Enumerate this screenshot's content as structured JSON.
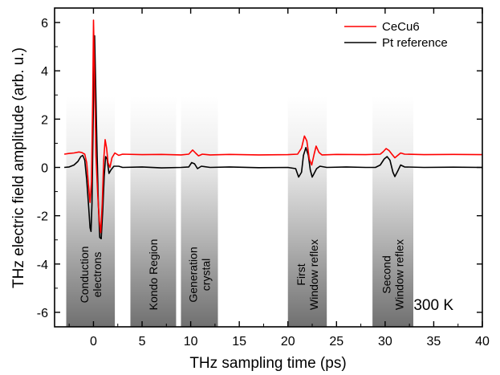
{
  "chart_data": {
    "type": "line",
    "title": "",
    "xlabel": "THz sampling time (ps)",
    "ylabel": "THz electric field amplitude (arb. u.)",
    "xlim": [
      -4,
      40
    ],
    "ylim": [
      -6.6,
      6.6
    ],
    "xticks": [
      0,
      5,
      10,
      15,
      20,
      25,
      30,
      35,
      40
    ],
    "yticks": [
      -6,
      -4,
      -2,
      0,
      2,
      4,
      6
    ],
    "legend": {
      "placement": "top-right"
    },
    "annotation": "300 K",
    "regions": [
      {
        "x0": -2.8,
        "x1": 2.2,
        "lines": [
          "Conduction",
          "electrons"
        ]
      },
      {
        "x0": 3.8,
        "x1": 8.5,
        "lines": [
          "Kondo Region"
        ]
      },
      {
        "x0": 9.0,
        "x1": 12.8,
        "lines": [
          "Generation",
          "crystal"
        ]
      },
      {
        "x0": 20.0,
        "x1": 24.0,
        "lines": [
          "First",
          "Window reflex"
        ]
      },
      {
        "x0": 28.7,
        "x1": 32.9,
        "lines": [
          "Second",
          "Window reflex"
        ]
      }
    ],
    "series": [
      {
        "name": "CeCu6",
        "color": "#ff0000",
        "points": [
          [
            -3,
            0.55
          ],
          [
            -2.5,
            0.58
          ],
          [
            -2,
            0.6
          ],
          [
            -1.5,
            0.64
          ],
          [
            -1.2,
            0.62
          ],
          [
            -0.9,
            0.55
          ],
          [
            -0.7,
            0.2
          ],
          [
            -0.5,
            -0.8
          ],
          [
            -0.35,
            -1.45
          ],
          [
            -0.2,
            -0.6
          ],
          [
            -0.08,
            2.8
          ],
          [
            0,
            6.1
          ],
          [
            0.1,
            4.0
          ],
          [
            0.25,
            0.5
          ],
          [
            0.45,
            -1.2
          ],
          [
            0.6,
            -2.2
          ],
          [
            0.75,
            -2.7
          ],
          [
            0.9,
            -1.5
          ],
          [
            1.05,
            0.3
          ],
          [
            1.2,
            1.15
          ],
          [
            1.35,
            0.8
          ],
          [
            1.5,
            0.2
          ],
          [
            1.7,
            0.0
          ],
          [
            1.9,
            0.4
          ],
          [
            2.2,
            0.6
          ],
          [
            2.6,
            0.5
          ],
          [
            3,
            0.55
          ],
          [
            5,
            0.53
          ],
          [
            7,
            0.54
          ],
          [
            9,
            0.52
          ],
          [
            9.8,
            0.55
          ],
          [
            10.2,
            0.72
          ],
          [
            10.5,
            0.6
          ],
          [
            10.8,
            0.48
          ],
          [
            11.2,
            0.55
          ],
          [
            12,
            0.52
          ],
          [
            14,
            0.54
          ],
          [
            17,
            0.52
          ],
          [
            20,
            0.53
          ],
          [
            21,
            0.55
          ],
          [
            21.4,
            0.8
          ],
          [
            21.7,
            1.3
          ],
          [
            21.95,
            1.1
          ],
          [
            22.2,
            0.35
          ],
          [
            22.45,
            0.1
          ],
          [
            22.7,
            0.55
          ],
          [
            22.9,
            0.88
          ],
          [
            23.2,
            0.62
          ],
          [
            23.5,
            0.52
          ],
          [
            25,
            0.54
          ],
          [
            28,
            0.53
          ],
          [
            29.5,
            0.55
          ],
          [
            29.8,
            0.65
          ],
          [
            30.1,
            0.78
          ],
          [
            30.4,
            0.7
          ],
          [
            30.7,
            0.55
          ],
          [
            31.0,
            0.4
          ],
          [
            31.3,
            0.5
          ],
          [
            31.6,
            0.6
          ],
          [
            32,
            0.55
          ],
          [
            34,
            0.53
          ],
          [
            37,
            0.54
          ],
          [
            40,
            0.53
          ]
        ]
      },
      {
        "name": "Pt reference",
        "color": "#000000",
        "points": [
          [
            -3,
            0.0
          ],
          [
            -2.5,
            0.02
          ],
          [
            -2,
            0.1
          ],
          [
            -1.6,
            0.25
          ],
          [
            -1.3,
            0.45
          ],
          [
            -1.1,
            0.5
          ],
          [
            -0.9,
            0.3
          ],
          [
            -0.7,
            -0.5
          ],
          [
            -0.5,
            -1.6
          ],
          [
            -0.35,
            -2.5
          ],
          [
            -0.25,
            -2.65
          ],
          [
            -0.15,
            -1.5
          ],
          [
            -0.05,
            1.2
          ],
          [
            0.05,
            4.5
          ],
          [
            0.12,
            5.45
          ],
          [
            0.22,
            3.6
          ],
          [
            0.35,
            1.0
          ],
          [
            0.5,
            -1.5
          ],
          [
            0.65,
            -2.9
          ],
          [
            0.8,
            -2.95
          ],
          [
            0.95,
            -1.8
          ],
          [
            1.1,
            -0.4
          ],
          [
            1.25,
            0.45
          ],
          [
            1.4,
            0.35
          ],
          [
            1.6,
            -0.25
          ],
          [
            1.8,
            -0.1
          ],
          [
            2.1,
            0.05
          ],
          [
            2.6,
            0.05
          ],
          [
            3,
            0.0
          ],
          [
            5,
            0.02
          ],
          [
            7,
            -0.02
          ],
          [
            9,
            0.0
          ],
          [
            9.8,
            0.02
          ],
          [
            10.1,
            0.2
          ],
          [
            10.4,
            0.15
          ],
          [
            10.7,
            -0.05
          ],
          [
            11.1,
            0.05
          ],
          [
            12,
            0.0
          ],
          [
            14,
            0.02
          ],
          [
            17,
            -0.01
          ],
          [
            20,
            0.0
          ],
          [
            20.8,
            -0.05
          ],
          [
            21.1,
            -0.4
          ],
          [
            21.4,
            -0.2
          ],
          [
            21.6,
            0.5
          ],
          [
            21.85,
            0.82
          ],
          [
            22.1,
            0.5
          ],
          [
            22.3,
            -0.1
          ],
          [
            22.5,
            -0.4
          ],
          [
            22.7,
            -0.25
          ],
          [
            22.95,
            -0.05
          ],
          [
            23.3,
            0.05
          ],
          [
            24,
            0.0
          ],
          [
            26,
            0.02
          ],
          [
            28,
            0.0
          ],
          [
            29,
            0.0
          ],
          [
            29.5,
            0.1
          ],
          [
            29.9,
            0.35
          ],
          [
            30.2,
            0.45
          ],
          [
            30.5,
            0.3
          ],
          [
            30.8,
            -0.2
          ],
          [
            31.0,
            -0.38
          ],
          [
            31.3,
            -0.15
          ],
          [
            31.6,
            0.1
          ],
          [
            32,
            0.02
          ],
          [
            34,
            0.0
          ],
          [
            37,
            0.01
          ],
          [
            40,
            0.0
          ]
        ]
      }
    ]
  },
  "colors": {
    "background": "#ffffff",
    "axis": "#000000",
    "region_dark": "#707070"
  }
}
